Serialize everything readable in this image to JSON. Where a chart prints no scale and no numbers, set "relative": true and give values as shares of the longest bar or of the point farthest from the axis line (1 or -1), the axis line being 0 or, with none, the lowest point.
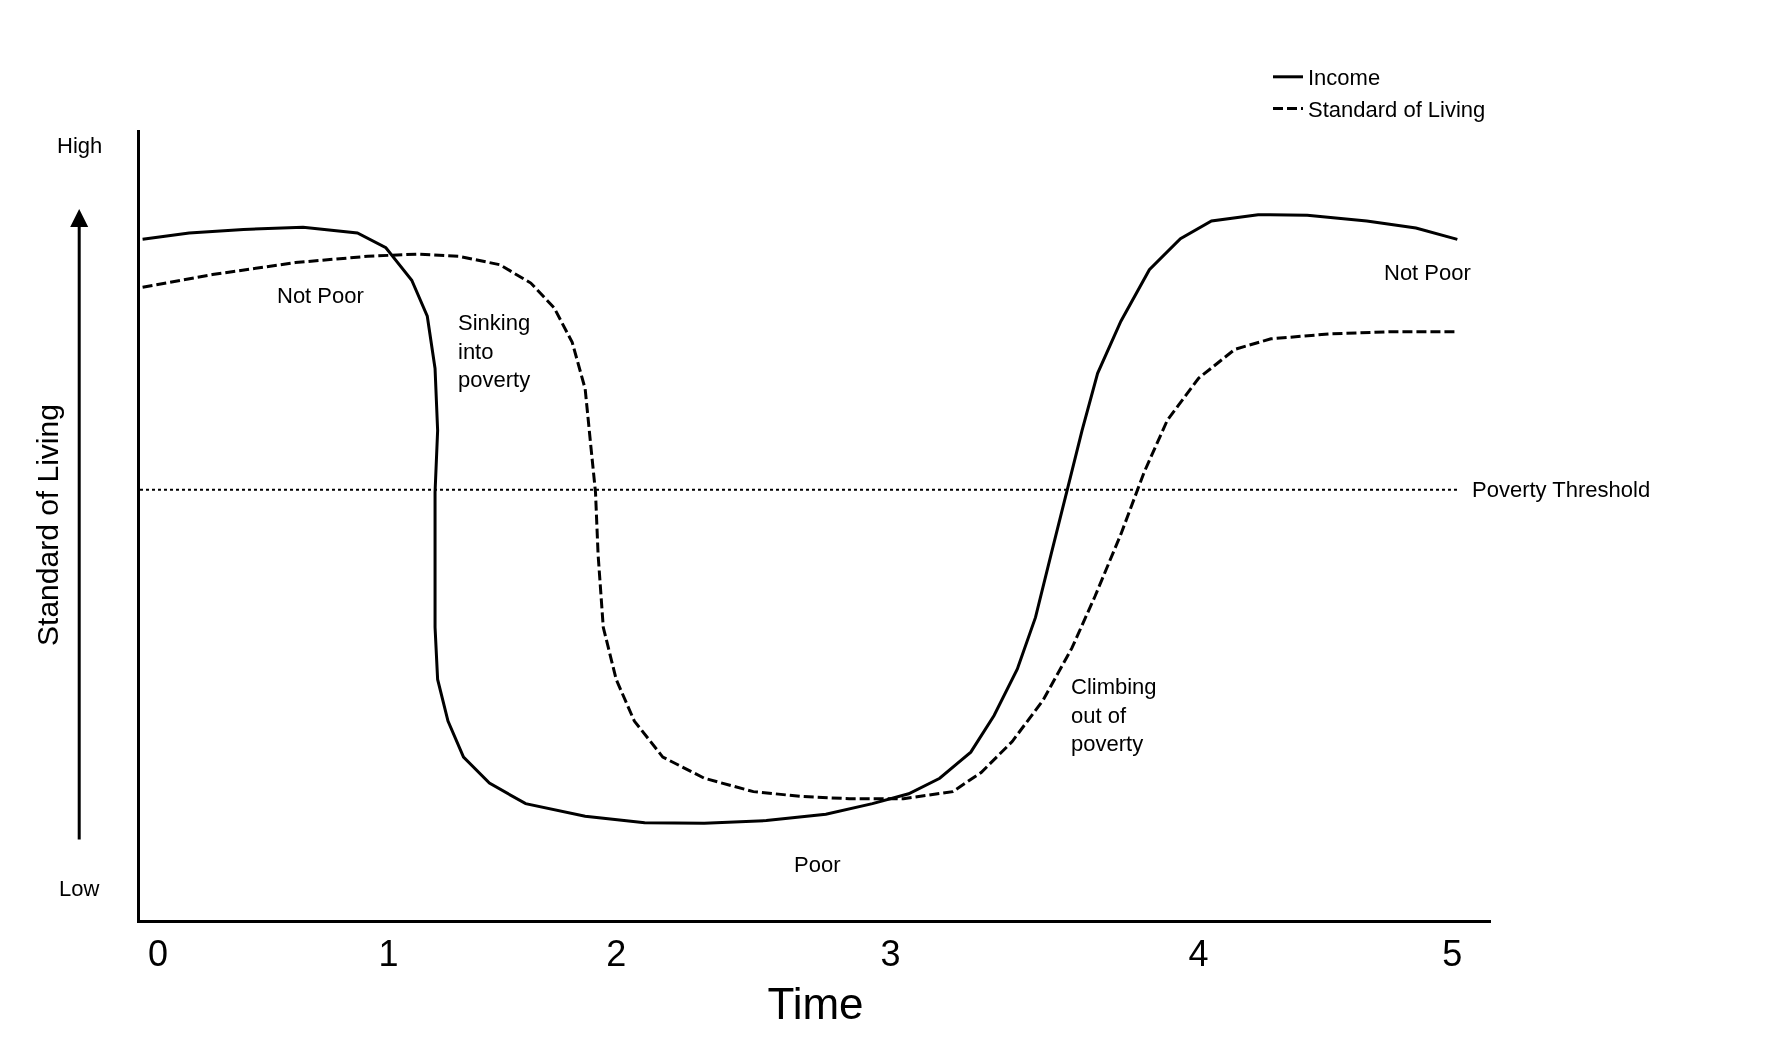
{
  "chart_data": {
    "type": "line",
    "relative": true,
    "xlabel": "Time",
    "ylabel": "Standard of Living",
    "xlim": [
      -0.07,
      5.15
    ],
    "xticks": [
      0,
      {
        "value": 0.89,
        "label": "1"
      },
      {
        "value": 1.77,
        "label": "2"
      },
      {
        "value": 2.83,
        "label": "3"
      },
      {
        "value": 4.02,
        "label": "4"
      },
      5
    ],
    "series": [
      {
        "name": "Income",
        "color": "#000000",
        "line_style": "solid",
        "x": [
          -0.06,
          0.12,
          0.33,
          0.56,
          0.77,
          0.88,
          0.98,
          1.04,
          1.07,
          1.08,
          1.07,
          1.07,
          1.07,
          1.08,
          1.12,
          1.18,
          1.28,
          1.42,
          1.65,
          1.88,
          2.11,
          2.35,
          2.58,
          2.76,
          2.9,
          3.02,
          3.14,
          3.23,
          3.32,
          3.39,
          3.45,
          3.51,
          3.57,
          3.63,
          3.72,
          3.83,
          3.95,
          4.07,
          4.25,
          4.44,
          4.67,
          4.86,
          5.02
        ],
        "values": [
          0.965,
          0.974,
          0.979,
          0.982,
          0.974,
          0.953,
          0.907,
          0.856,
          0.782,
          0.694,
          0.606,
          0.518,
          0.415,
          0.341,
          0.282,
          0.231,
          0.194,
          0.165,
          0.147,
          0.138,
          0.137,
          0.141,
          0.15,
          0.165,
          0.179,
          0.201,
          0.238,
          0.29,
          0.356,
          0.429,
          0.518,
          0.606,
          0.694,
          0.775,
          0.849,
          0.922,
          0.966,
          0.991,
          1.0,
          0.999,
          0.991,
          0.981,
          0.965
        ]
      },
      {
        "name": "Standard of Living",
        "color": "#000000",
        "line_style": "dashed",
        "x": [
          -0.06,
          0.21,
          0.53,
          0.81,
          1.0,
          1.16,
          1.32,
          1.44,
          1.53,
          1.6,
          1.65,
          1.67,
          1.69,
          1.7,
          1.72,
          1.77,
          1.84,
          1.95,
          2.11,
          2.3,
          2.49,
          2.67,
          2.88,
          3.07,
          3.18,
          3.3,
          3.42,
          3.53,
          3.62,
          3.72,
          3.81,
          3.9,
          4.02,
          4.16,
          4.3,
          4.53,
          4.76,
          5.02
        ],
        "values": [
          0.897,
          0.915,
          0.932,
          0.941,
          0.944,
          0.941,
          0.929,
          0.903,
          0.868,
          0.819,
          0.753,
          0.679,
          0.606,
          0.518,
          0.415,
          0.341,
          0.282,
          0.231,
          0.201,
          0.182,
          0.175,
          0.172,
          0.172,
          0.182,
          0.209,
          0.253,
          0.312,
          0.385,
          0.459,
          0.547,
          0.635,
          0.709,
          0.768,
          0.809,
          0.824,
          0.831,
          0.834,
          0.834
        ]
      }
    ],
    "ref_lines": [
      {
        "axis": "y",
        "value": 0.61,
        "label": "Poverty Threshold",
        "color": "#000000",
        "line_style": "dotted"
      }
    ],
    "annotations": [
      "High",
      "Low",
      "Not Poor",
      "Sinking into poverty",
      "Poor",
      "Climbing out of poverty",
      "Not Poor"
    ],
    "legend": "top right"
  }
}
